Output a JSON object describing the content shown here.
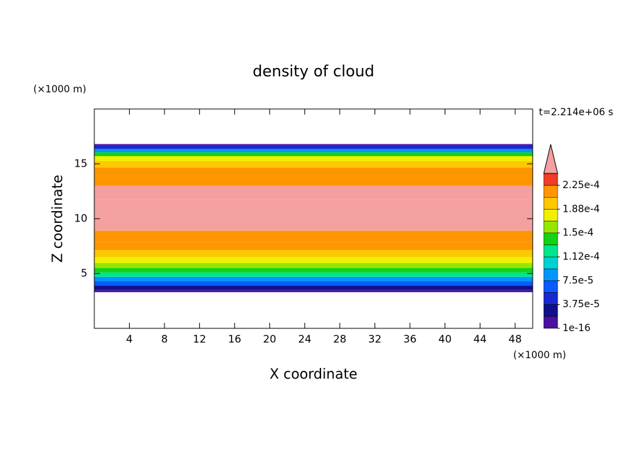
{
  "chart_data": {
    "type": "contour",
    "title": "density of cloud",
    "x_label": "X coordinate",
    "y_label": "Z coordinate",
    "x_unit": "(×1000 m)",
    "y_unit": "(×1000 m)",
    "time_label": "t=2.214e+06 s",
    "xlim": [
      0,
      50
    ],
    "ylim": [
      0,
      20
    ],
    "xticks": [
      4,
      8,
      12,
      16,
      20,
      24,
      28,
      32,
      36,
      40,
      44,
      48
    ],
    "yticks": [
      5,
      10,
      15
    ],
    "field": {
      "z": [
        3.3,
        3.7,
        4.1,
        4.5,
        4.9,
        5.3,
        5.7,
        6.2,
        6.8,
        7.5,
        8.3,
        9.5,
        11,
        12.5,
        13.5,
        14.3,
        15,
        15.5,
        15.9,
        16.2,
        16.5,
        16.8
      ],
      "values": [
        1e-16,
        3e-05,
        6e-05,
        9e-05,
        0.00012,
        0.000145,
        0.000165,
        0.00018,
        0.000195,
        0.00021,
        0.00022,
        0.00023,
        0.000235,
        0.00023,
        0.00022,
        0.00021,
        0.000195,
        0.000175,
        0.00014,
        9e-05,
        4e-05,
        1e-16
      ]
    },
    "levels": [
      1e-16,
      1.875e-05,
      3.75e-05,
      5.625e-05,
      7.5e-05,
      9.375e-05,
      0.0001125,
      0.00013125,
      0.00015,
      0.00016875,
      0.0001875,
      0.00020625,
      0.000225
    ],
    "colors": [
      "#4a10a0",
      "#10108c",
      "#1a28d2",
      "#0a5aff",
      "#0096ff",
      "#00d2d2",
      "#00e68c",
      "#14d214",
      "#96e600",
      "#f0f000",
      "#ffc800",
      "#ff9600",
      "#f03c28"
    ],
    "over_color": "#f4a0a0",
    "colorbar_ticks": [
      {
        "value": 1e-16,
        "label": "1e-16"
      },
      {
        "value": 3.75e-05,
        "label": "3.75e-5"
      },
      {
        "value": 7.5e-05,
        "label": "7.5e-5"
      },
      {
        "value": 0.0001125,
        "label": "1.12e-4"
      },
      {
        "value": 0.00015,
        "label": "1.5e-4"
      },
      {
        "value": 0.0001875,
        "label": "1.88e-4"
      },
      {
        "value": 0.000225,
        "label": "2.25e-4"
      }
    ]
  }
}
